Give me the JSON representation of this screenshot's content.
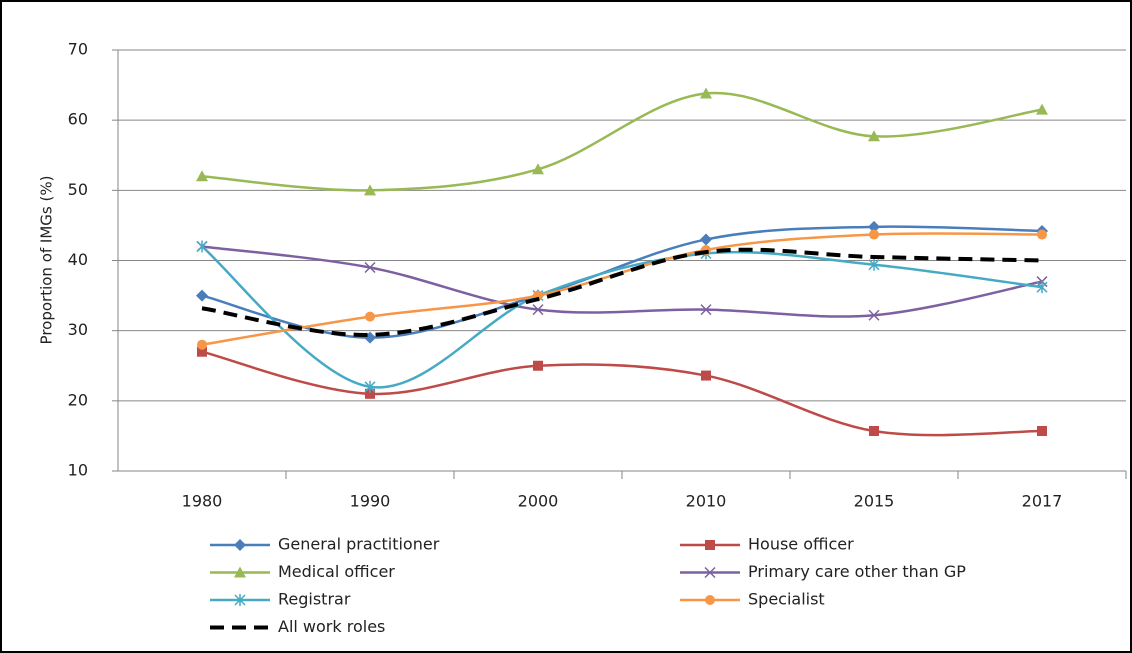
{
  "chart_data": {
    "type": "line",
    "y_label": "Proportion of IMGs (%)",
    "categories": [
      "1980",
      "1990",
      "2000",
      "2010",
      "2015",
      "2017"
    ],
    "ylim": [
      10,
      70
    ],
    "yticks": [
      10,
      20,
      30,
      40,
      50,
      60,
      70
    ],
    "grid": true,
    "smooth": true,
    "legend": "bottom",
    "series": [
      {
        "name": "General practitioner",
        "color": "#4a7ebb",
        "marker": "diamond",
        "values": [
          35,
          29,
          35,
          43,
          44.8,
          44.2
        ]
      },
      {
        "name": "House officer",
        "color": "#be4b48",
        "marker": "square",
        "values": [
          27,
          21,
          25,
          23.6,
          15.7,
          15.7
        ]
      },
      {
        "name": "Medical officer",
        "color": "#98b954",
        "marker": "triangle",
        "values": [
          52,
          50,
          53,
          63.8,
          57.7,
          61.5
        ]
      },
      {
        "name": "Primary care other than GP",
        "color": "#7d60a0",
        "marker": "x",
        "values": [
          42,
          39,
          33,
          33,
          32.2,
          37
        ]
      },
      {
        "name": "Registrar",
        "color": "#46aac5",
        "marker": "asterisk",
        "values": [
          42,
          22,
          35,
          41,
          39.4,
          36.2
        ]
      },
      {
        "name": "Specialist",
        "color": "#f79646",
        "marker": "circle",
        "values": [
          28,
          32,
          35,
          41.5,
          43.7,
          43.7
        ]
      },
      {
        "name": "All work roles",
        "color": "#000000",
        "marker": "none",
        "dash": true,
        "values": [
          33.2,
          29.4,
          34.5,
          41.2,
          40.5,
          40
        ]
      }
    ]
  }
}
